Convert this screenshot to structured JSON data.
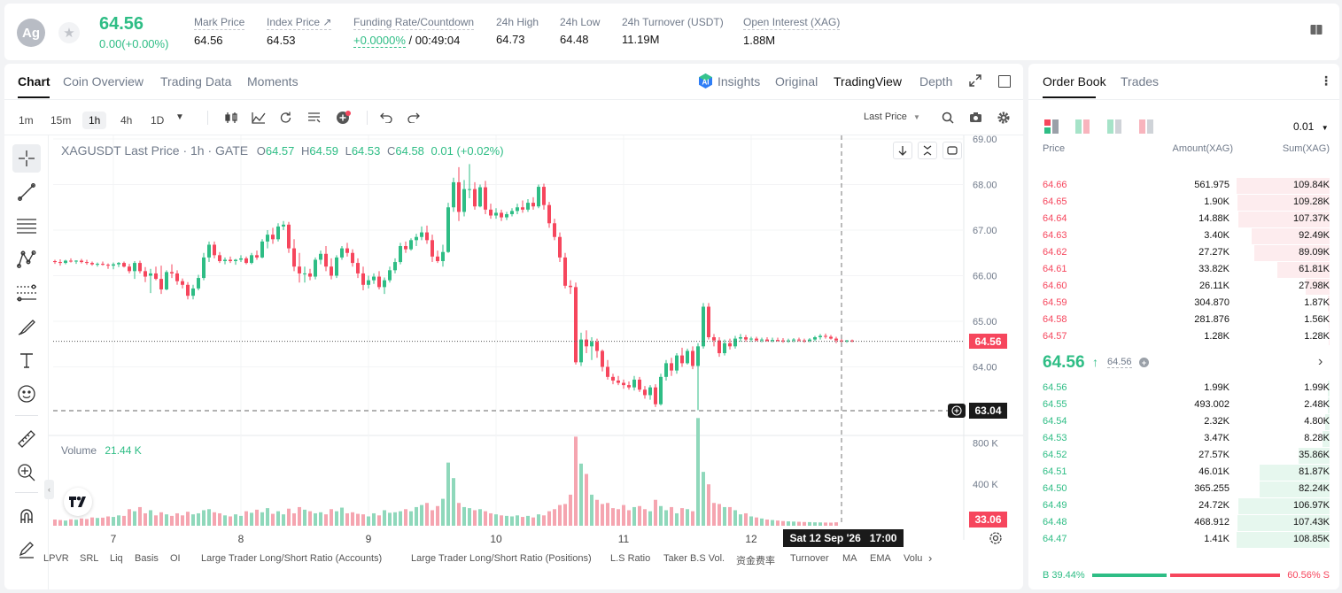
{
  "header": {
    "avatar": "Ag",
    "price": "64.56",
    "change": "0.00(+0.00%)",
    "stats": [
      {
        "label": "Mark Price",
        "value": "64.56"
      },
      {
        "label": "Index Price ↗",
        "value": "64.53"
      },
      {
        "label": "Funding Rate/Countdown",
        "value_green": "+0.0000%",
        "value": "/ 00:49:04"
      },
      {
        "label": "24h High",
        "value": "64.73"
      },
      {
        "label": "24h Low",
        "value": "64.48"
      },
      {
        "label": "24h Turnover (USDT)",
        "value": "11.19M"
      },
      {
        "label": "Open Interest (XAG)",
        "value": "1.88M"
      }
    ]
  },
  "chart_tabs": {
    "items": [
      "Chart",
      "Coin Overview",
      "Trading Data",
      "Moments"
    ],
    "right": [
      "Insights",
      "Original",
      "TradingView",
      "Depth"
    ]
  },
  "toolbar": {
    "timeframes": [
      "1m",
      "15m",
      "1h",
      "4h",
      "1D"
    ],
    "last_price": "Last Price"
  },
  "legend": {
    "symbol": "XAGUSDT Last Price · 1h · GATE",
    "o_label": "O",
    "o": "64.57",
    "h_label": "H",
    "h": "64.59",
    "l_label": "L",
    "l": "64.53",
    "c_label": "C",
    "c": "64.58",
    "chg": "0.01 (+0.02%)"
  },
  "volume": {
    "label": "Volume",
    "value": "21.44 K"
  },
  "crosshair": {
    "price": "63.04",
    "date": "Sat 12 Sep '26",
    "time": "17:00",
    "vol": "33.06"
  },
  "bottom_bar": [
    "LPVR",
    "SRL",
    "Liq",
    "Basis",
    "OI",
    "Large Trader Long/Short Ratio (Accounts)",
    "Large Trader Long/Short Ratio (Positions)",
    "L.S Ratio",
    "Taker B.S Vol.",
    "资金费率",
    "Turnover",
    "MA",
    "EMA",
    "Volu"
  ],
  "orderbook": {
    "tabs": [
      "Order Book",
      "Trades"
    ],
    "precision": "0.01",
    "headers": {
      "price": "Price",
      "amount": "Amount(XAG)",
      "sum": "Sum(XAG)"
    },
    "asks": [
      {
        "price": "64.66",
        "amount": "561.975",
        "sum": "109.84K",
        "depth": 1.0
      },
      {
        "price": "64.65",
        "amount": "1.90K",
        "sum": "109.28K",
        "depth": 0.995
      },
      {
        "price": "64.64",
        "amount": "14.88K",
        "sum": "107.37K",
        "depth": 0.977
      },
      {
        "price": "64.63",
        "amount": "3.40K",
        "sum": "92.49K",
        "depth": 0.842
      },
      {
        "price": "64.62",
        "amount": "27.27K",
        "sum": "89.09K",
        "depth": 0.811
      },
      {
        "price": "64.61",
        "amount": "33.82K",
        "sum": "61.81K",
        "depth": 0.563
      },
      {
        "price": "64.60",
        "amount": "26.11K",
        "sum": "27.98K",
        "depth": 0.255
      },
      {
        "price": "64.59",
        "amount": "304.870",
        "sum": "1.87K",
        "depth": 0.017
      },
      {
        "price": "64.58",
        "amount": "281.876",
        "sum": "1.56K",
        "depth": 0.014
      },
      {
        "price": "64.57",
        "amount": "1.28K",
        "sum": "1.28K",
        "depth": 0.012
      }
    ],
    "mid_price": "64.56",
    "mid_arrow": "↑",
    "mark_price": "64.56",
    "bids": [
      {
        "price": "64.56",
        "amount": "1.99K",
        "sum": "1.99K",
        "depth": 0.018
      },
      {
        "price": "64.55",
        "amount": "493.002",
        "sum": "2.48K",
        "depth": 0.023
      },
      {
        "price": "64.54",
        "amount": "2.32K",
        "sum": "4.80K",
        "depth": 0.044
      },
      {
        "price": "64.53",
        "amount": "3.47K",
        "sum": "8.28K",
        "depth": 0.076
      },
      {
        "price": "64.52",
        "amount": "27.57K",
        "sum": "35.86K",
        "depth": 0.33
      },
      {
        "price": "64.51",
        "amount": "46.01K",
        "sum": "81.87K",
        "depth": 0.752
      },
      {
        "price": "64.50",
        "amount": "365.255",
        "sum": "82.24K",
        "depth": 0.756
      },
      {
        "price": "64.49",
        "amount": "24.72K",
        "sum": "106.97K",
        "depth": 0.983
      },
      {
        "price": "64.48",
        "amount": "468.912",
        "sum": "107.43K",
        "depth": 0.987
      },
      {
        "price": "64.47",
        "amount": "1.41K",
        "sum": "108.85K",
        "depth": 1.0
      }
    ],
    "buy_ratio": "B 39.44%",
    "sell_ratio": "60.56% S",
    "buy_fraction": 0.3944
  },
  "colors": {
    "up": "#2ebd85",
    "down": "#f6465d",
    "up_vol": "#8fd8bb",
    "down_vol": "#f5a5b0"
  },
  "chart_data": {
    "type": "candlestick",
    "symbol": "XAGUSDT",
    "interval": "1h",
    "y_ticks": [
      "69.00",
      "68.00",
      "67.00",
      "66.00",
      "65.00",
      "64.00"
    ],
    "ylim": [
      63.0,
      69.0
    ],
    "x_ticks": [
      "7",
      "8",
      "9",
      "10",
      "11",
      "12"
    ],
    "last_price": "64.56",
    "volume_ticks": [
      "800 K",
      "400 K"
    ],
    "volume_max": 1000000,
    "ohlc": [
      [
        66.32,
        66.35,
        66.26,
        66.3
      ],
      [
        66.3,
        66.36,
        66.22,
        66.28
      ],
      [
        66.28,
        66.35,
        66.25,
        66.33
      ],
      [
        66.33,
        66.38,
        66.29,
        66.31
      ],
      [
        66.31,
        66.34,
        66.26,
        66.33
      ],
      [
        66.33,
        66.37,
        66.27,
        66.3
      ],
      [
        66.3,
        66.35,
        66.24,
        66.28
      ],
      [
        66.28,
        66.31,
        66.22,
        66.25
      ],
      [
        66.25,
        66.29,
        66.2,
        66.26
      ],
      [
        66.26,
        66.31,
        66.22,
        66.24
      ],
      [
        66.24,
        66.27,
        66.15,
        66.22
      ],
      [
        66.22,
        66.29,
        66.14,
        66.25
      ],
      [
        66.25,
        66.3,
        66.19,
        66.28
      ],
      [
        66.28,
        66.31,
        66.18,
        66.2
      ],
      [
        66.2,
        66.26,
        66.05,
        66.1
      ],
      [
        66.1,
        66.32,
        65.93,
        66.28
      ],
      [
        66.28,
        66.33,
        66.05,
        66.1
      ],
      [
        66.1,
        66.19,
        65.86,
        65.98
      ],
      [
        66.0,
        66.15,
        65.62,
        66.05
      ],
      [
        66.05,
        66.2,
        65.9,
        65.93
      ],
      [
        65.93,
        66.22,
        65.6,
        65.7
      ],
      [
        65.7,
        66.12,
        65.68,
        66.08
      ],
      [
        66.08,
        66.25,
        65.95,
        66.05
      ],
      [
        66.05,
        66.12,
        65.8,
        65.88
      ],
      [
        65.88,
        65.94,
        65.72,
        65.8
      ],
      [
        65.8,
        65.86,
        65.48,
        65.56
      ],
      [
        65.56,
        65.8,
        65.48,
        65.72
      ],
      [
        65.72,
        66.02,
        65.68,
        65.95
      ],
      [
        65.95,
        66.5,
        65.9,
        66.4
      ],
      [
        66.4,
        66.75,
        66.3,
        66.68
      ],
      [
        66.68,
        66.75,
        66.38,
        66.45
      ],
      [
        66.45,
        66.52,
        66.28,
        66.32
      ],
      [
        66.32,
        66.4,
        66.25,
        66.35
      ],
      [
        66.35,
        66.42,
        66.28,
        66.32
      ],
      [
        66.32,
        66.37,
        66.24,
        66.35
      ],
      [
        66.35,
        66.45,
        66.3,
        66.38
      ],
      [
        66.38,
        66.42,
        66.25,
        66.28
      ],
      [
        66.28,
        66.5,
        66.25,
        66.45
      ],
      [
        66.45,
        66.55,
        66.35,
        66.4
      ],
      [
        66.4,
        66.8,
        66.38,
        66.75
      ],
      [
        66.75,
        67.0,
        66.6,
        66.9
      ],
      [
        66.9,
        67.05,
        66.7,
        66.8
      ],
      [
        66.8,
        67.15,
        66.75,
        67.08
      ],
      [
        67.08,
        67.2,
        67.0,
        67.12
      ],
      [
        67.12,
        67.18,
        66.5,
        66.6
      ],
      [
        66.6,
        66.8,
        66.1,
        66.2
      ],
      [
        66.2,
        66.5,
        65.85,
        66.05
      ],
      [
        66.05,
        66.2,
        65.85,
        66.05
      ],
      [
        66.05,
        66.15,
        65.9,
        65.98
      ],
      [
        65.98,
        66.4,
        65.92,
        66.35
      ],
      [
        66.35,
        66.55,
        66.25,
        66.48
      ],
      [
        66.48,
        66.65,
        66.1,
        66.2
      ],
      [
        66.2,
        66.38,
        65.92,
        66.0
      ],
      [
        66.0,
        66.45,
        65.95,
        66.4
      ],
      [
        66.4,
        66.65,
        66.35,
        66.6
      ],
      [
        66.6,
        66.72,
        66.42,
        66.5
      ],
      [
        66.5,
        66.58,
        66.2,
        66.28
      ],
      [
        66.28,
        66.38,
        65.95,
        66.05
      ],
      [
        66.05,
        66.2,
        65.68,
        65.8
      ],
      [
        65.8,
        66.0,
        65.72,
        65.9
      ],
      [
        65.9,
        66.05,
        65.82,
        65.98
      ],
      [
        65.98,
        66.1,
        65.7,
        65.75
      ],
      [
        65.75,
        65.96,
        65.6,
        65.9
      ],
      [
        65.9,
        66.2,
        65.85,
        66.12
      ],
      [
        66.12,
        66.38,
        66.05,
        66.3
      ],
      [
        66.3,
        66.72,
        66.25,
        66.65
      ],
      [
        66.65,
        66.75,
        66.5,
        66.58
      ],
      [
        66.58,
        66.82,
        66.55,
        66.78
      ],
      [
        66.78,
        66.92,
        66.65,
        66.85
      ],
      [
        66.85,
        67.08,
        66.78,
        66.95
      ],
      [
        66.95,
        67.1,
        66.7,
        66.78
      ],
      [
        66.78,
        66.9,
        66.3,
        66.42
      ],
      [
        66.42,
        66.55,
        66.28,
        66.32
      ],
      [
        66.32,
        66.68,
        66.2,
        66.52
      ],
      [
        66.52,
        67.6,
        66.5,
        67.5
      ],
      [
        67.5,
        68.15,
        67.4,
        68.05
      ],
      [
        68.05,
        68.38,
        67.2,
        67.4
      ],
      [
        67.4,
        68.1,
        67.3,
        67.9
      ],
      [
        67.9,
        68.45,
        67.7,
        67.9
      ],
      [
        67.9,
        68.05,
        67.45,
        67.52
      ],
      [
        67.52,
        68.0,
        67.5,
        67.94
      ],
      [
        67.94,
        68.08,
        67.35,
        67.45
      ],
      [
        67.45,
        67.58,
        67.25,
        67.32
      ],
      [
        67.32,
        67.48,
        67.25,
        67.38
      ],
      [
        67.38,
        67.45,
        67.2,
        67.28
      ],
      [
        67.28,
        67.4,
        67.22,
        67.35
      ],
      [
        67.35,
        67.48,
        67.3,
        67.42
      ],
      [
        67.42,
        67.58,
        67.35,
        67.5
      ],
      [
        67.5,
        67.65,
        67.38,
        67.45
      ],
      [
        67.45,
        67.68,
        67.4,
        67.6
      ],
      [
        67.6,
        67.72,
        67.45,
        67.52
      ],
      [
        67.52,
        68.0,
        67.48,
        67.95
      ],
      [
        67.95,
        68.02,
        67.45,
        67.55
      ],
      [
        67.55,
        67.62,
        67.05,
        67.15
      ],
      [
        67.15,
        67.25,
        66.78,
        66.85
      ],
      [
        66.85,
        66.95,
        66.3,
        66.4
      ],
      [
        66.4,
        66.5,
        65.72,
        65.78
      ],
      [
        65.78,
        65.9,
        65.6,
        65.75
      ],
      [
        65.75,
        65.85,
        64.05,
        64.1
      ],
      [
        64.1,
        64.75,
        64.02,
        64.6
      ],
      [
        64.6,
        64.8,
        64.3,
        64.45
      ],
      [
        64.45,
        64.65,
        64.15,
        64.55
      ],
      [
        64.55,
        64.62,
        64.2,
        64.35
      ],
      [
        64.35,
        64.38,
        63.9,
        64.0
      ],
      [
        64.0,
        64.15,
        63.72,
        63.78
      ],
      [
        63.78,
        63.85,
        63.62,
        63.7
      ],
      [
        63.7,
        63.8,
        63.6,
        63.65
      ],
      [
        63.65,
        63.72,
        63.52,
        63.6
      ],
      [
        63.6,
        63.68,
        63.5,
        63.55
      ],
      [
        63.55,
        63.8,
        63.48,
        63.72
      ],
      [
        63.72,
        63.78,
        63.45,
        63.5
      ],
      [
        63.5,
        63.58,
        63.3,
        63.38
      ],
      [
        63.38,
        63.6,
        63.28,
        63.55
      ],
      [
        63.55,
        63.62,
        63.12,
        63.18
      ],
      [
        63.18,
        63.85,
        63.15,
        63.78
      ],
      [
        63.78,
        64.15,
        63.7,
        64.08
      ],
      [
        64.08,
        64.2,
        63.8,
        63.92
      ],
      [
        63.92,
        64.3,
        63.85,
        64.25
      ],
      [
        64.25,
        64.42,
        64.0,
        64.08
      ],
      [
        64.08,
        64.4,
        64.05,
        64.35
      ],
      [
        64.35,
        64.45,
        63.95,
        64.02
      ],
      [
        64.02,
        64.52,
        63.05,
        64.45
      ],
      [
        64.45,
        65.4,
        64.4,
        65.32
      ],
      [
        65.32,
        65.4,
        64.6,
        64.65
      ],
      [
        64.65,
        64.72,
        64.45,
        64.58
      ],
      [
        64.58,
        64.65,
        64.22,
        64.3
      ],
      [
        64.3,
        64.6,
        64.25,
        64.52
      ],
      [
        64.52,
        64.62,
        64.38,
        64.45
      ],
      [
        64.45,
        64.68,
        64.4,
        64.62
      ],
      [
        64.62,
        64.72,
        64.55,
        64.65
      ],
      [
        64.65,
        64.7,
        64.55,
        64.6
      ],
      [
        64.6,
        64.66,
        64.55,
        64.62
      ],
      [
        64.62,
        64.66,
        64.56,
        64.58
      ],
      [
        64.58,
        64.64,
        64.54,
        64.6
      ],
      [
        64.6,
        64.65,
        64.55,
        64.57
      ],
      [
        64.57,
        64.64,
        64.54,
        64.59
      ],
      [
        64.59,
        64.64,
        64.55,
        64.58
      ],
      [
        64.58,
        64.63,
        64.53,
        64.56
      ],
      [
        64.56,
        64.62,
        64.53,
        64.58
      ],
      [
        64.58,
        64.63,
        64.54,
        64.6
      ],
      [
        64.6,
        64.64,
        64.55,
        64.58
      ],
      [
        64.58,
        64.62,
        64.53,
        64.57
      ],
      [
        64.57,
        64.63,
        64.54,
        64.6
      ],
      [
        64.6,
        64.68,
        64.56,
        64.65
      ],
      [
        64.65,
        64.72,
        64.6,
        64.68
      ],
      [
        64.68,
        64.73,
        64.62,
        64.66
      ],
      [
        64.66,
        64.7,
        64.6,
        64.62
      ],
      [
        64.62,
        64.66,
        64.52,
        64.58
      ],
      [
        64.58,
        64.62,
        64.5,
        64.56
      ],
      [
        64.56,
        64.59,
        64.53,
        64.58
      ],
      [
        64.58,
        64.6,
        64.54,
        64.56
      ]
    ],
    "vol": [
      60000,
      55000,
      50000,
      62000,
      58000,
      70000,
      65000,
      80000,
      75000,
      78000,
      90000,
      85000,
      100000,
      95000,
      160000,
      140000,
      180000,
      120000,
      150000,
      100000,
      130000,
      110000,
      95000,
      120000,
      100000,
      135000,
      110000,
      120000,
      150000,
      160000,
      130000,
      120000,
      100000,
      90000,
      110000,
      95000,
      140000,
      125000,
      155000,
      130000,
      170000,
      115000,
      140000,
      110000,
      165000,
      120000,
      180000,
      155000,
      140000,
      120000,
      130000,
      110000,
      160000,
      140000,
      175000,
      120000,
      130000,
      115000,
      110000,
      90000,
      120000,
      100000,
      150000,
      125000,
      130000,
      140000,
      160000,
      140000,
      180000,
      200000,
      220000,
      150000,
      190000,
      260000,
      610000,
      460000,
      220000,
      180000,
      170000,
      150000,
      160000,
      140000,
      120000,
      110000,
      100000,
      95000,
      90000,
      100000,
      85000,
      95000,
      80000,
      110000,
      100000,
      140000,
      160000,
      200000,
      210000,
      300000,
      860000,
      600000,
      500000,
      300000,
      250000,
      210000,
      220000,
      170000,
      160000,
      200000,
      150000,
      180000,
      190000,
      160000,
      140000,
      250000,
      190000,
      150000,
      180000,
      120000,
      170000,
      160000,
      140000,
      1040000,
      520000,
      400000,
      220000,
      210000,
      180000,
      180000,
      150000,
      110000,
      120000,
      90000,
      80000,
      70000,
      60000,
      55000,
      50000,
      45000,
      42000,
      40000,
      38000,
      36000,
      35000,
      33000,
      32000,
      31000,
      30000,
      33060
    ]
  }
}
